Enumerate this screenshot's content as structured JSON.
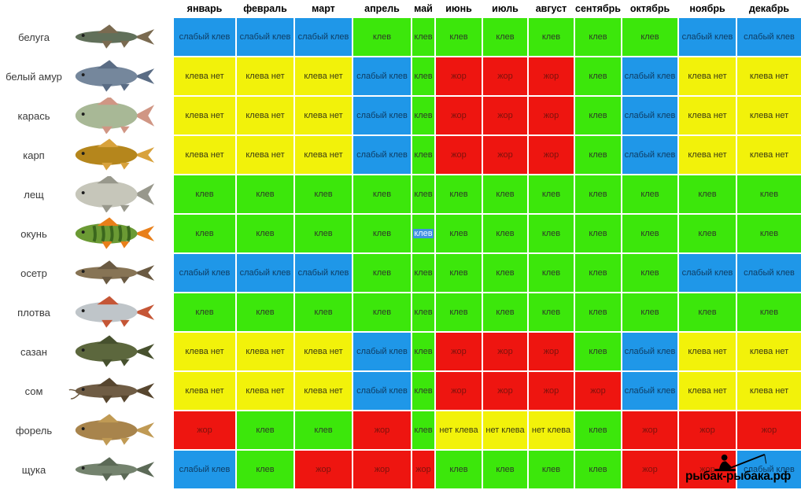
{
  "chart_data": {
    "type": "table",
    "columns": [
      "январь",
      "февраль",
      "март",
      "апрель",
      "май",
      "июнь",
      "июль",
      "август",
      "сентябрь",
      "октябрь",
      "ноябрь",
      "декабрь"
    ],
    "status_colors": {
      "клев": "#3ce70b",
      "слабый клев": "#1f97e8",
      "клева нет": "#f2f20a",
      "нет клева": "#f2f20a",
      "жор": "#ee1510"
    },
    "rows": [
      {
        "fish": "белуга",
        "icon": "beluga-fish-icon",
        "shape": "slim",
        "body": "#61705a",
        "fin": "#7a6a50",
        "cells": [
          "слабый клев",
          "слабый клев",
          "слабый клев",
          "клев",
          "клев",
          "клев",
          "клев",
          "клев",
          "клев",
          "клев",
          "слабый клев",
          "слабый клев"
        ]
      },
      {
        "fish": "белый амур",
        "icon": "grass-carp-fish-icon",
        "shape": "normal",
        "body": "#75879c",
        "fin": "#5a6c84",
        "cells": [
          "клева нет",
          "клева нет",
          "клева нет",
          "слабый клев",
          "клев",
          "жор",
          "жор",
          "жор",
          "клев",
          "слабый клев",
          "клева нет",
          "клева нет"
        ]
      },
      {
        "fish": "карась",
        "icon": "crucian-carp-fish-icon",
        "shape": "deep",
        "body": "#a8b896",
        "fin": "#d09684",
        "cells": [
          "клева нет",
          "клева нет",
          "клева нет",
          "слабый клев",
          "клев",
          "жор",
          "жор",
          "жор",
          "клев",
          "слабый клев",
          "клева нет",
          "клева нет"
        ]
      },
      {
        "fish": "карп",
        "icon": "carp-fish-icon",
        "shape": "normal",
        "body": "#b5861c",
        "fin": "#d8a23c",
        "cells": [
          "клева нет",
          "клева нет",
          "клева нет",
          "слабый клев",
          "клев",
          "жор",
          "жор",
          "жор",
          "клев",
          "слабый клев",
          "клева нет",
          "клева нет"
        ]
      },
      {
        "fish": "лещ",
        "icon": "bream-fish-icon",
        "shape": "deep",
        "body": "#c6c6ba",
        "fin": "#98988c",
        "cells": [
          "клев",
          "клев",
          "клев",
          "клев",
          "клев",
          "клев",
          "клев",
          "клев",
          "клев",
          "клев",
          "клев",
          "клев"
        ]
      },
      {
        "fish": "окунь",
        "icon": "perch-fish-icon",
        "shape": "normal",
        "body": "#6b9a34",
        "fin": "#e87f1a",
        "stripes": "#2f5a18",
        "cells": [
          "клев",
          "клев",
          "клев",
          "клев",
          "клев",
          "клев",
          "клев",
          "клев",
          "клев",
          "клев",
          "клев",
          "клев"
        ]
      },
      {
        "fish": "осетр",
        "icon": "sturgeon-fish-icon",
        "shape": "slim",
        "body": "#877455",
        "fin": "#6a5a42",
        "cells": [
          "слабый клев",
          "слабый клев",
          "слабый клев",
          "клев",
          "клев",
          "клев",
          "клев",
          "клев",
          "клев",
          "клев",
          "слабый клев",
          "слабый клев"
        ]
      },
      {
        "fish": "плотва",
        "icon": "roach-fish-icon",
        "shape": "normal",
        "body": "#bfc5c9",
        "fin": "#c55636",
        "cells": [
          "клев",
          "клев",
          "клев",
          "клев",
          "клев",
          "клев",
          "клев",
          "клев",
          "клев",
          "клев",
          "клев",
          "клев"
        ]
      },
      {
        "fish": "сазан",
        "icon": "sazan-carp-fish-icon",
        "shape": "normal",
        "body": "#5c673d",
        "fin": "#47512e",
        "cells": [
          "клева нет",
          "клева нет",
          "клева нет",
          "слабый клев",
          "клев",
          "жор",
          "жор",
          "жор",
          "клев",
          "слабый клев",
          "клева нет",
          "клева нет"
        ]
      },
      {
        "fish": "сом",
        "icon": "catfish-fish-icon",
        "shape": "catfish",
        "body": "#6f5c44",
        "fin": "#57462f",
        "cells": [
          "клева нет",
          "клева нет",
          "клева нет",
          "слабый клев",
          "клев",
          "жор",
          "жор",
          "жор",
          "жор",
          "слабый клев",
          "клева нет",
          "клева нет"
        ]
      },
      {
        "fish": "форель",
        "icon": "trout-fish-icon",
        "shape": "normal",
        "body": "#a8844c",
        "fin": "#c09a54",
        "cells": [
          "жор",
          "клев",
          "клев",
          "жор",
          "клев",
          "нет клева",
          "нет клева",
          "нет клева",
          "клев",
          "жор",
          "жор",
          "жор"
        ]
      },
      {
        "fish": "щука",
        "icon": "pike-fish-icon",
        "shape": "slim",
        "body": "#74836e",
        "fin": "#5c6a57",
        "cells": [
          "слабый клев",
          "клев",
          "жор",
          "жор",
          "жор",
          "клев",
          "клев",
          "клев",
          "клев",
          "жор",
          "жор",
          "слабый клев"
        ]
      }
    ],
    "selected_cell": {
      "row_index": 5,
      "col_index": 4
    }
  },
  "watermark": {
    "text": "рыбак-рыбака.рф"
  }
}
